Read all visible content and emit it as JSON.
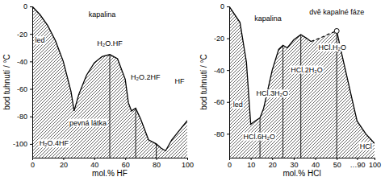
{
  "chart_data": [
    {
      "type": "area",
      "color": "#000000",
      "xlabel": "mol.% HF",
      "ylabel": "bod tuhnutí / °C",
      "xlim": [
        0,
        100
      ],
      "ylim": [
        -110,
        0
      ],
      "xticks": [
        0,
        20,
        40,
        60,
        80,
        100
      ],
      "yticks": [
        0,
        -20,
        -40,
        -60,
        -80,
        -100
      ],
      "x": [
        0,
        5,
        10,
        15,
        20,
        25,
        27,
        30,
        35,
        40,
        45,
        50,
        55,
        60,
        62,
        64,
        66.7,
        70,
        75,
        80,
        83,
        86,
        90,
        95,
        100
      ],
      "series": [
        {
          "values": [
            0,
            -6,
            -14,
            -25,
            -40,
            -62,
            -76,
            -64,
            -50,
            -41,
            -36.5,
            -35,
            -38,
            -53,
            -70,
            -76,
            -74,
            -82,
            -97,
            -100,
            -103,
            -105,
            -97,
            -90,
            -83
          ],
          "line_style": "solid"
        }
      ],
      "vlines": {
        "x": [
          50,
          66.7,
          80
        ],
        "values": [
          -35,
          -74,
          -100
        ]
      },
      "annotations": [
        {
          "text": "kapalina",
          "x": 45,
          "y": -6
        },
        {
          "text": "led",
          "x": 5,
          "y": -25
        },
        {
          "text": "H₂O.HF",
          "x": 50,
          "y": -27
        },
        {
          "text": "pevná látka",
          "x": 36,
          "y": -85
        },
        {
          "text": "H₂O.2HF",
          "x": 73,
          "y": -52
        },
        {
          "text": "H₂O.4HF",
          "x": 14,
          "y": -100
        },
        {
          "text": "HF",
          "x": 95,
          "y": -55
        }
      ]
    },
    {
      "type": "area",
      "color": "#000000",
      "xlabel": "mol.% HCl",
      "ylabel": "bod tuhnutí / °C",
      "xlim": [
        0,
        100
      ],
      "ylim": [
        -95,
        0
      ],
      "x_break": [
        50,
        90
      ],
      "xticks": [
        0,
        10,
        20,
        30,
        40,
        50,
        {
          "value": 90,
          "label": "…90"
        },
        100
      ],
      "yticks": [
        0,
        -20,
        -40,
        -60,
        -80
      ],
      "x": [
        0,
        5,
        8,
        10,
        12,
        14.3,
        16,
        20,
        23,
        25,
        27,
        30,
        33.3,
        36,
        38,
        42,
        46,
        50,
        60,
        70,
        80,
        90,
        95,
        100
      ],
      "series": [
        {
          "values": [
            0,
            -10,
            -35,
            -74,
            -72,
            -70,
            -64,
            -40,
            -27,
            -24.4,
            -26,
            -21,
            -17.7,
            -20,
            -22,
            null,
            null,
            null,
            null,
            null,
            null,
            null,
            null,
            null
          ],
          "line_style": "solid"
        },
        {
          "values": [
            null,
            null,
            null,
            null,
            null,
            null,
            null,
            null,
            null,
            null,
            null,
            null,
            null,
            null,
            -22,
            -20,
            -17.5,
            -15.4,
            null,
            null,
            null,
            null,
            null,
            null
          ],
          "line_style": "dashed"
        },
        {
          "values": [
            null,
            null,
            null,
            null,
            null,
            null,
            null,
            null,
            null,
            null,
            null,
            null,
            null,
            null,
            null,
            null,
            null,
            -15.4,
            -30,
            -44,
            -58,
            -72,
            -80,
            -86
          ],
          "line_style": "solid"
        },
        {
          "values": [
            null,
            null,
            null,
            null,
            null,
            null,
            null,
            null,
            null,
            null,
            null,
            null,
            null,
            null,
            null,
            null,
            null,
            -15.4,
            null,
            null,
            null,
            null,
            null,
            null
          ],
          "type": "scatter",
          "marker": "circle"
        }
      ],
      "vlines": {
        "x": [
          14.3,
          25,
          33.3,
          50
        ],
        "values": [
          -70,
          -24.4,
          -17.7,
          -15.4
        ]
      },
      "annotations": [
        {
          "text": "kapalina",
          "x": 18,
          "y": -8
        },
        {
          "text": "dvě kapalné fáze",
          "x": 50,
          "y": -4
        },
        {
          "text": "led",
          "x": 4,
          "y": -62
        },
        {
          "text": "HCl.6H₂O",
          "x": 14,
          "y": -82
        },
        {
          "text": "HCl.3H₂O",
          "x": 20,
          "y": -55
        },
        {
          "text": "HCl.2H₂O",
          "x": 36,
          "y": -40
        },
        {
          "text": "HCl.H₂O",
          "x": 48,
          "y": -26
        },
        {
          "text": "HCl",
          "x": 95,
          "y": -88
        }
      ]
    }
  ]
}
